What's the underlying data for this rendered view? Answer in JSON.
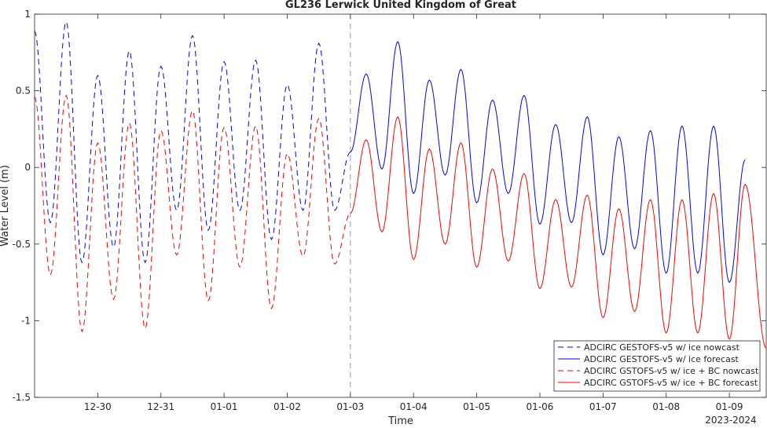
{
  "chart_data": {
    "type": "line",
    "title": "GL236 Lerwick United Kingdom of Great",
    "xlabel": "Time",
    "ylabel": "Water Level (m)",
    "year_label": "2023-2024",
    "ylim": [
      -1.5,
      1
    ],
    "xlim": [
      "2023-12-29T00:00",
      "2024-01-09T14:00"
    ],
    "yticks": [
      "-1.5",
      "-1",
      "-0.5",
      "0",
      "0.5",
      "1"
    ],
    "xticks": [
      "12-30",
      "12-31",
      "01-01",
      "01-02",
      "01-03",
      "01-04",
      "01-05",
      "01-06",
      "01-07",
      "01-08",
      "01-09"
    ],
    "nowcast_end": "2024-01-03T00:00",
    "legend_position": "bottom-right",
    "grid": false,
    "colors": {
      "blue": "#0000ff",
      "red": "#ff0000",
      "divider": "#808080"
    },
    "series": [
      {
        "name": "ADCIRC GESTOFS-v5 w/ ice nowcast",
        "color": "#0000ff",
        "dash": "dashed",
        "x": [
          "12-29 00:00",
          "12-29 06:00",
          "12-29 12:00",
          "12-29 18:00",
          "12-30 00:00",
          "12-30 06:00",
          "12-30 12:00",
          "12-30 18:00",
          "12-31 00:00",
          "12-31 06:00",
          "12-31 12:00",
          "12-31 18:00",
          "01-01 00:00",
          "01-01 06:00",
          "01-01 12:00",
          "01-01 18:00",
          "01-02 00:00",
          "01-02 06:00",
          "01-02 12:00",
          "01-02 18:00",
          "01-03 00:00"
        ],
        "y": [
          0.89,
          -0.36,
          0.95,
          -0.62,
          0.6,
          -0.52,
          0.76,
          -0.62,
          0.66,
          -0.28,
          0.86,
          -0.41,
          0.69,
          -0.28,
          0.7,
          -0.47,
          0.54,
          -0.28,
          0.81,
          -0.28,
          0.1
        ]
      },
      {
        "name": "ADCIRC GESTOFS-v5 w/ ice forecast",
        "color": "#0000ff",
        "dash": "solid",
        "x": [
          "01-03 00:00",
          "01-03 06:00",
          "01-03 12:00",
          "01-03 18:00",
          "01-04 00:00",
          "01-04 06:00",
          "01-04 12:00",
          "01-04 18:00",
          "01-05 00:00",
          "01-05 06:00",
          "01-05 12:00",
          "01-05 18:00",
          "01-06 00:00",
          "01-06 06:00",
          "01-06 12:00",
          "01-06 18:00",
          "01-07 00:00",
          "01-07 06:00",
          "01-07 12:00",
          "01-07 18:00",
          "01-08 00:00",
          "01-08 06:00",
          "01-08 12:00",
          "01-08 18:00",
          "01-09 00:00",
          "01-09 06:00"
        ],
        "y": [
          0.1,
          0.61,
          -0.01,
          0.82,
          -0.17,
          0.57,
          -0.05,
          0.64,
          -0.23,
          0.44,
          -0.17,
          0.47,
          -0.37,
          0.28,
          -0.36,
          0.33,
          -0.57,
          0.2,
          -0.53,
          0.24,
          -0.69,
          0.27,
          -0.69,
          0.27,
          -0.75,
          0.05
        ]
      },
      {
        "name": "ADCIRC GSTOFS-v5 w/ ice + BC nowcast",
        "color": "#ff0000",
        "dash": "dashed",
        "x": [
          "12-29 00:00",
          "12-29 06:00",
          "12-29 12:00",
          "12-29 18:00",
          "12-30 00:00",
          "12-30 06:00",
          "12-30 12:00",
          "12-30 18:00",
          "12-31 00:00",
          "12-31 06:00",
          "12-31 12:00",
          "12-31 18:00",
          "01-01 00:00",
          "01-01 06:00",
          "01-01 12:00",
          "01-01 18:00",
          "01-02 00:00",
          "01-02 06:00",
          "01-02 12:00",
          "01-02 18:00",
          "01-03 00:00"
        ],
        "y": [
          0.46,
          -0.7,
          0.47,
          -1.07,
          0.16,
          -0.86,
          0.29,
          -1.05,
          0.24,
          -0.57,
          0.37,
          -0.87,
          0.26,
          -0.65,
          0.27,
          -0.92,
          0.09,
          -0.58,
          0.32,
          -0.63,
          -0.3
        ]
      },
      {
        "name": "ADCIRC GSTOFS-v5 w/ ice + BC forecast",
        "color": "#ff0000",
        "dash": "solid",
        "x": [
          "01-03 00:00",
          "01-03 06:00",
          "01-03 12:00",
          "01-03 18:00",
          "01-04 00:00",
          "01-04 06:00",
          "01-04 12:00",
          "01-04 18:00",
          "01-05 00:00",
          "01-05 06:00",
          "01-05 12:00",
          "01-05 18:00",
          "01-06 00:00",
          "01-06 06:00",
          "01-06 12:00",
          "01-06 18:00",
          "01-07 00:00",
          "01-07 06:00",
          "01-07 12:00",
          "01-07 18:00",
          "01-08 00:00",
          "01-08 06:00",
          "01-08 12:00",
          "01-08 18:00",
          "01-09 00:00",
          "01-09 06:00",
          "01-09 14:00"
        ],
        "y": [
          -0.3,
          0.18,
          -0.42,
          0.33,
          -0.6,
          0.12,
          -0.5,
          0.16,
          -0.65,
          -0.01,
          -0.61,
          -0.04,
          -0.79,
          -0.21,
          -0.78,
          -0.18,
          -0.98,
          -0.27,
          -0.94,
          -0.21,
          -1.08,
          -0.21,
          -1.08,
          -0.17,
          -1.12,
          -0.11,
          -1.18
        ]
      }
    ]
  }
}
